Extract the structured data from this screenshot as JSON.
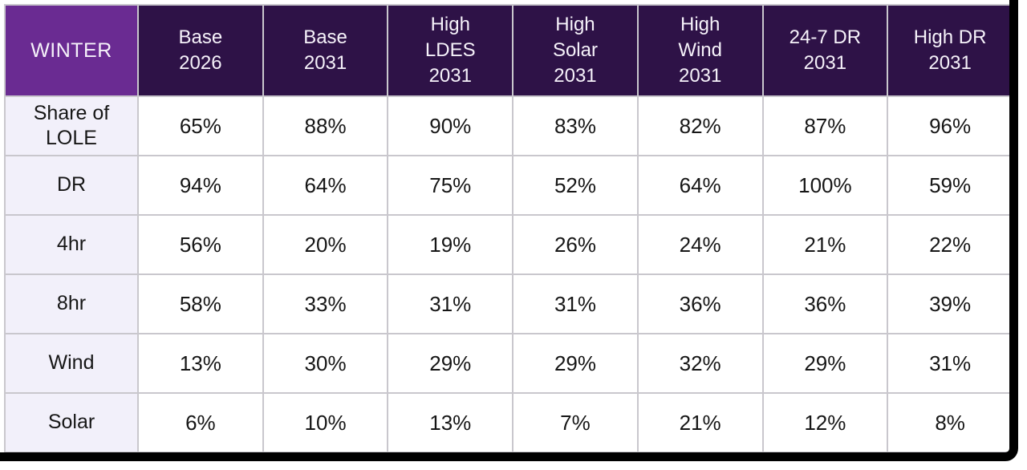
{
  "chart_data": {
    "type": "table",
    "title": "WINTER",
    "corner_label": "WINTER",
    "columns": [
      "Base\n2026",
      "Base\n2031",
      "High\nLDES\n2031",
      "High\nSolar\n2031",
      "High\nWind\n2031",
      "24-7 DR\n2031",
      "High DR\n2031"
    ],
    "rows": [
      {
        "label": "Share of LOLE",
        "values": [
          "65%",
          "88%",
          "90%",
          "83%",
          "82%",
          "87%",
          "96%"
        ]
      },
      {
        "label": "DR",
        "values": [
          "94%",
          "64%",
          "75%",
          "52%",
          "64%",
          "100%",
          "59%"
        ]
      },
      {
        "label": "4hr",
        "values": [
          "56%",
          "20%",
          "19%",
          "26%",
          "24%",
          "21%",
          "22%"
        ]
      },
      {
        "label": "8hr",
        "values": [
          "58%",
          "33%",
          "31%",
          "31%",
          "36%",
          "36%",
          "39%"
        ]
      },
      {
        "label": "Wind",
        "values": [
          "13%",
          "30%",
          "29%",
          "29%",
          "32%",
          "29%",
          "31%"
        ]
      },
      {
        "label": "Solar",
        "values": [
          "6%",
          "10%",
          "13%",
          "7%",
          "21%",
          "12%",
          "8%"
        ]
      }
    ],
    "layout": {
      "grid": "on",
      "header_position": "top",
      "row_label_position": "left"
    }
  },
  "colors": {
    "corner_header_bg": "#6a2b92",
    "column_header_bg": "#2e1247",
    "header_text": "#f6f2fa",
    "row_label_bg": "#f2f0fa",
    "data_cell_bg": "#ffffff",
    "grid_border": "#c9c7cd",
    "body_text": "#161616",
    "outer_frame": "#000000"
  }
}
